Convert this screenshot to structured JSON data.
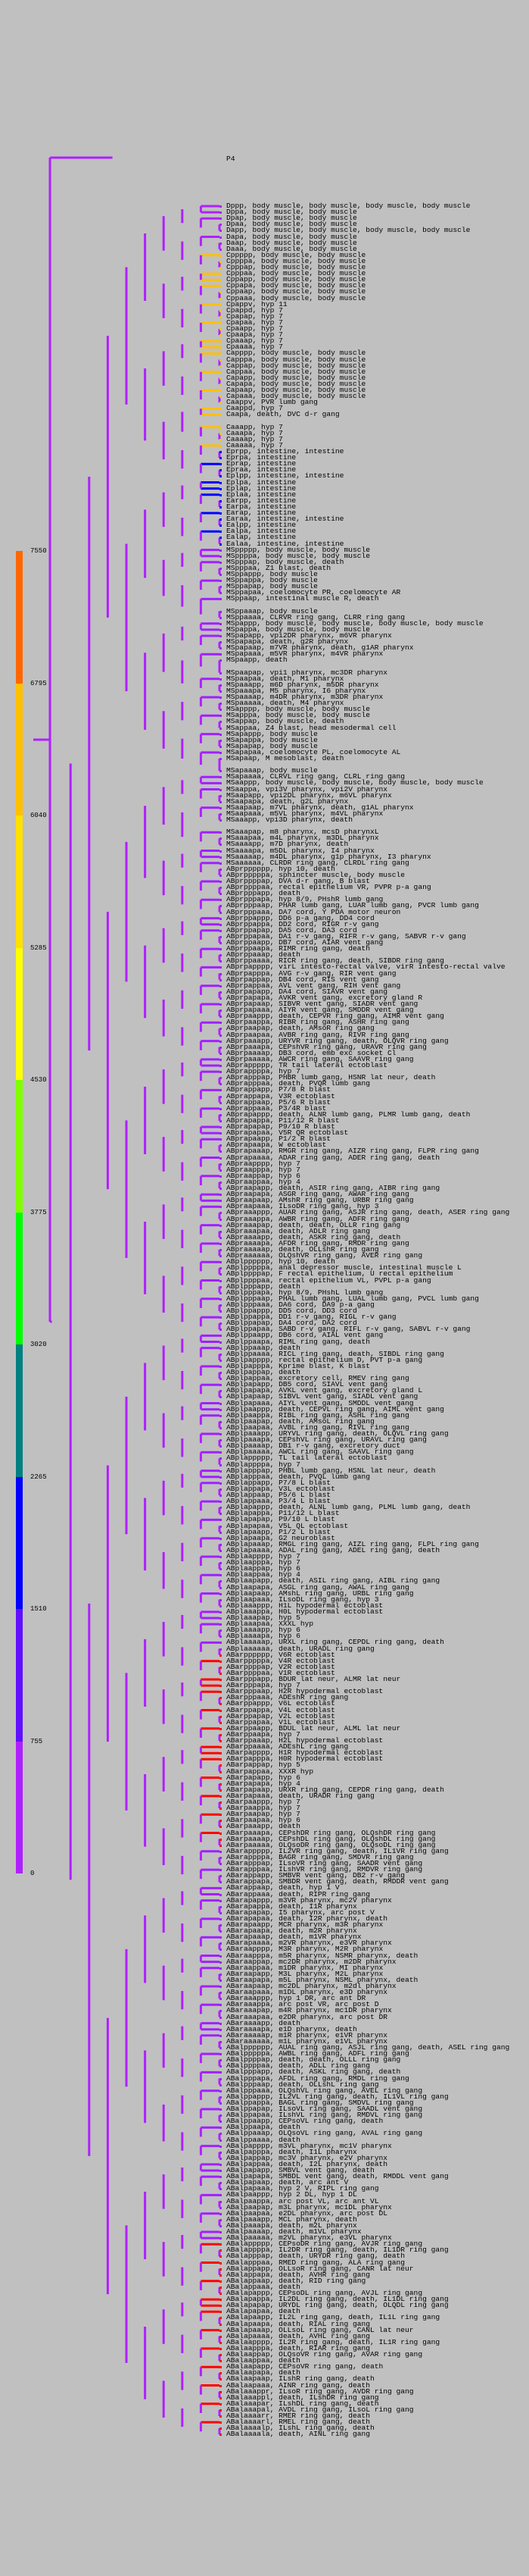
{
  "root_label": "P4",
  "legend": {
    "ticks": [
      "7550",
      "6795",
      "6040",
      "5285",
      "4530",
      "3775",
      "3020",
      "2265",
      "1510",
      "755",
      "0"
    ],
    "colors": [
      "#ff6600",
      "#ffc000",
      "#ffe000",
      "#ffff00",
      "#80ff00",
      "#00ff00",
      "#008080",
      "#0000ff",
      "#6010ff",
      "#b020ff"
    ]
  },
  "branch_color": "#b020ff",
  "group_colors": {
    "D": "#b020ff",
    "C": "#ffc000",
    "E": "#0000ff",
    "MS": "#a020ff",
    "ABpr": "#a020ff",
    "ABpl": "#a020ff",
    "ABarp": "#ff0000",
    "ABara": "#a020ff",
    "ABalp": "#a020ff",
    "ABala": "#ff0000"
  },
  "leaves": [
    "Dppp, body muscle, body muscle, body muscle, body muscle",
    "Dppa, body muscle, body muscle",
    "Dpap, body muscle, body muscle",
    "Dpaa, body muscle, body muscle",
    "Dapp, body muscle, body muscle, body muscle, body muscle",
    "Dapa, body muscle, body muscle",
    "Daap, body muscle, body muscle",
    "Daaa, body muscle, body muscle",
    "Cppppp, body muscle, body muscle",
    "Cppppa, body muscle, body muscle",
    "Cpppap, body muscle, body muscle",
    "Cpppaa, body muscle, body muscle",
    "Cppapp, body muscle, body muscle",
    "Cppapa, body muscle, body muscle",
    "Cppaap, body muscle, body muscle",
    "Cppaaa, body muscle, body muscle",
    "Cpappv, hyp 11",
    "Cpappd, hyp 7",
    "Cpapap, hyp 7",
    "Cpapaa, hyp 7",
    "Cpaapp, hyp 7",
    "Cpaapa, hyp 7",
    "Cpaaap, hyp 7",
    "Cpaaaa, hyp 7",
    "Capppp, body muscle, body muscle",
    "Capppa, body muscle, body muscle",
    "Cappap, body muscle, body muscle",
    "Cappaa, body muscle, body muscle",
    "Capapp, body muscle, body muscle",
    "Capapa, body muscle, body muscle",
    "Capaap, body muscle, body muscle",
    "Capaaa, body muscle, body muscle",
    "Caappv, PVR lumb gang",
    "Caappd, hyp 7",
    "Caapa, death, DVC d-r gang",
    "",
    "Caaapp, hyp 7",
    "Caaapa, hyp 7",
    "Caaaap, hyp 7",
    "Caaaaa, hyp 7",
    "Eprpp, intestine, intestine",
    "Eprpa, intestine",
    "Eprap, intestine",
    "Epraa, intestine",
    "Eplpp, intestine, intestine",
    "Eplpa, intestine",
    "Eplap, intestine",
    "Eplaa, intestine",
    "Earpp, intestine",
    "Earpa, intestine",
    "Earap, intestine",
    "Earaa, intestine, intestine",
    "Ealpp, intestine",
    "Ealpa, intestine",
    "Ealap, intestine",
    "Ealaa, intestine, intestine",
    "MSppppp, body muscle, body muscle",
    "MSppppa, body muscle, body muscle",
    "MSpppap, body muscle, death",
    "MSpppaa, Z1 blast, death",
    "MSppappp, body muscle",
    "MSppappa, body muscle",
    "MSppapap, body muscle",
    "MSppapaa, coelomocyte PR, coelomocyte AR",
    "MSppaap, intestinal muscle R, death",
    "",
    "MSppaaap, body muscle",
    "MSppaaaa, CLRVR ring gang, CLRR ring gang",
    "MSpappp, body muscle, body muscle, body muscle, body muscle",
    "MSpappa, body muscle, body muscle",
    "MSpapapp, vpi2DR pharynx, m6VR pharynx",
    "MSpapapa, death, g2R pharynx",
    "MSpapaap, m7VR pharynx, death, g1AR pharynx",
    "MSpapaaa, m5VR pharynx, m4VR pharynx",
    "MSpaapp, death",
    "",
    "MSpaapap, vpi1 pharynx, mc3DR pharynx",
    "MSpaapaa, death, M1 pharynx",
    "MSpaaapp, m6D pharynx, m5DR pharynx",
    "MSpaaapa, M5 pharynx, I6 pharynx",
    "MSpaaaap, m4DR pharynx, m3DR pharynx",
    "MSpaaaaa, death, M4 pharynx",
    "MSapppp, body muscle, body muscle",
    "MSapppa, body muscle, body muscle",
    "MSappap, body muscle, death",
    "MSappaa, Z4 blast, head mesodermal cell",
    "MSapappp, body muscle",
    "MSapappa, body muscle",
    "MSapapap, body muscle",
    "MSapapaa, coelomocyte PL, coelomocyte AL",
    "MSapaap, M mesoblast, death",
    "",
    "MSapaaap, body muscle",
    "MSapaaaa, CLRVL ring gang, CLRL ring gang",
    "MSaappp, body muscle, body muscle, body muscle, body muscle",
    "MSaappa, vpi3V pharynx, vpi2V pharynx",
    "MSaapapp, vpi2DL pharynx, m6VL pharynx",
    "MSaapapa, death, g2L pharynx",
    "MSaapaap, m7VL pharynx, death, g1AL pharynx",
    "MSaapaaa, m5VL pharynx, m4VL pharynx",
    "MSaaapp, vpi3D pharynx, death",
    "",
    "MSaaapap, m8 pharynx, mcsD pharynxL",
    "MSaaapaa, m4L pharynx, m3DL pharynx",
    "MSaaaapp, m7D pharynx, death",
    "MSaaaapa, m5DL pharynx, I4 pharynx",
    "MSaaaaap, m4DL pharynx, g1p pharynx, I3 pharynx",
    "MSaaaaaa, CLRDR ring gang, CLRDL ring gang",
    "ABprpppppp, hyp 10, death",
    "ABprpppppa, sphincter muscle, body muscle",
    "ABprppppap, DVA d-r gang, B blast",
    "ABprppppaa, rectal epithelium VR, PVPR p-a gang",
    "ABprpppapp, death",
    "ABprpppapa, hyp 8/9, PHshR lumb gang",
    "ABprpppaap, PHAR lumb gang, LUAR lumb gang, PVCR lumb gang",
    "ABprpppaaa, DA7 cord, Y PDA motor neuron",
    "ABprppappp, DD6 p-a gang, DD4 cord",
    "ABprppappa, DD2 cord, RIGR r-v gang",
    "ABprppapap, DA5 cord, DA3 cord",
    "ABprppapaa, DA1 r-v gang, RIFR r-v gang, SABVR r-v gang",
    "ABprppaapp, DB7 cord, AIAR vent gang",
    "ABprppaapa, RIMR ring gang, death",
    "ABprppaaap, death",
    "ABprppaaaa, RICR ring gang, death, SIBDR ring gang",
    "ABprpapppp, virL intesto-rectal valve, virR intesto-rectal valve",
    "ABprpapppa, AVG r-v gang, RIR vent gang",
    "ABprpappap, DB4 cord, RIS vent gang",
    "ABprpappaa, AVL vent gang, RIH vent gang",
    "ABprpapapp, DA4 cord, SIAVR vent gang",
    "ABprpapapa, AVKR vent gang, excretory gland R",
    "ABprpapaap, SIBVR vent gang, SIADR vent gang",
    "ABprpapaaa, AIYR vent gang, SMDDR vent gang",
    "ABprpaappp, death, CEPVR ring gang, AIMR vent gang",
    "ABprpaappa, RIBR ring gang, ASHR ring gang",
    "ABprpaapap, death, AMsoR ring gang",
    "ABprpaapaa, AVBR ring gang, RIVR ring gang",
    "ABprpaaapp, URYVR ring gang, death, OLQVR ring gang",
    "ABprpaaapa, CEPshVR ring gang, URAVR ring gang",
    "ABprpaaaap, DB3 cord, emb exc socket Cl",
    "ABprpaaaaa, AWCR ring gang, SAAVR ring gang",
    "ABprappppp, TR tail lateral ectoblast",
    "ABprappppa, hyp 7",
    "ABprapppap, PHBR lumb gang, HSNR lat neur, death",
    "ABprapppaa, death, PVQR lumb gang",
    "ABprappapp, P7/8 R blast",
    "ABprappapa, V3R ectoblast",
    "ABprappaap, P5/6 R blast",
    "ABprappaaa, P3/4R blast",
    "ABprapappp, death, ALNR lumb gang, PLMR lumb gang, death",
    "ABprapappa, P11/12 R blast",
    "ABprapapap, P9/10 R blast",
    "ABprapapaa, V5R QR ectoblast",
    "ABprapaapp, P1/2 R blast",
    "ABprapaapa, W ectoblast",
    "ABprapaaap, RMGR ring gang, AIZR ring gang, FLPR ring gang",
    "ABprapaaaa, ADAR ring gang, ADER ring gang, death",
    "ABpraapppp, hyp 7",
    "ABpraapppa, hyp 7",
    "ABpraappap, hyp 6",
    "ABpraappaa, hyp 4",
    "ABpraapapp, death, ASIR ring gang, AIBR ring gang",
    "ABpraapapa, ASGR ring gang, AWAR ring gang",
    "ABpraapaap, AMshR ring gang, URBR ring gang",
    "ABpraapaaa, ILsoDR ring gang, hyp 3",
    "ABpraaappp, AUAR ring gang, ASJR ring gang, death, ASER ring gang",
    "ABpraaappa, AWBR ring gang, ADFR ring gang",
    "ABpraaapap, death, death, OLLR ring gang",
    "ABpraaapaa, death, ADLR ring gang",
    "ABpraaaapp, death, ASKR ring gang, death",
    "ABpraaaapa, AFDR ring gang, RMDR ring gang",
    "ABpraaaaap, death, OLLshR ring gang",
    "ABpraaaaaa, OLQshVR ring gang, AVER ring gang",
    "ABplpppppp, hyp 10, death",
    "ABplpppppa, anal depressor muscle, intestinal muscle L",
    "ABplppppap, F rectal epithelium, U rectal epithelium",
    "ABplppppaa, rectal epithelium VL, PVPL p-a gang",
    "ABplpppapp, death",
    "ABplpppapa, hyp 8/9, PHshL lumb gang",
    "ABplpppaap, PHAL lumb gang, LUAL lumb gang, PVCL lumb gang",
    "ABplpppaaa, DA6 cord, DA9 p-a gang",
    "ABplppappp, DD5 cord, DD3 cord",
    "ABplppappa, DD1 r-v gang, RIGL r-v gang",
    "ABplppapap, DA4 cord, DA2 cord",
    "ABplppapaa, SABD r-v gang, RIFL r-v gang, SABVL r-v gang",
    "ABplppaapp, DB6 cord, AIAL vent gang",
    "ABplppaapa, RIML ring gang, death",
    "ABplppaaap, death",
    "ABplppaaaa, RICL ring gang, death, SIBDL ring gang",
    "ABplpapppp, rectal epithelium D, PVT p-a gang",
    "ABplpapppa, Kprime blast, K blast",
    "ABplpappap, death",
    "ABplpappaa, excretory cell, RMEV ring gang",
    "ABplpapapp, DB5 cord, SIAVL vent gang",
    "ABplpapapa, AVKL vent gang, excretory gland L",
    "ABplpapaap, SIBVL vent gang, SIADL vent gang",
    "ABplpapaaa, AIYL vent gang, SMDDL vent gang",
    "ABplpaappp, death, CEPVL ring gang, AIML vent gang",
    "ABplpaappa, RIBL ring gang, ASHL ring gang",
    "ABplpaapap, death, AMsoL ring gang",
    "ABplpaapaa, AVBL ring gang, RIVL ring gang",
    "ABplpaaapp, URYVL ring gang, death, OLQVL ring gang",
    "ABplpaaapa, CEPshVL ring gang, URAVL ring gang",
    "ABplpaaaap, DB1 r-v gang, excretory duct",
    "ABplpaaaaa, AWCL ring gang, SAAVL ring gang",
    "ABplappppp, TL tail lateral ectoblast",
    "ABplappppa, hyp 7",
    "ABplapppap, PHBL lumb gang, HSNL lat neur, death",
    "ABplapppaa, death, PVQL lumb gang",
    "ABplappapp, P7/8 L blast",
    "ABplappapa, V3L ectoblast",
    "ABplappaap, P5/6 L blast",
    "ABplappaaa, P3/4 L blast",
    "ABplapappp, death, ALNL lumb gang, PLML lumb gang, death",
    "ABplapappa, P11/12 L blast",
    "ABplapapap, P9/10 L blast",
    "ABplapapaa, V5L QL ectoblast",
    "ABplapaapp, P1/2 L blast",
    "ABplapaapa, G2 neuroblast",
    "ABplapaaap, RMGL ring gang, AIZL ring gang, FLPL ring gang",
    "ABplapaaaa, ADAL ring gang, ADEL ring gang, death",
    "ABplaapppp, hyp 7",
    "ABplaapppa, hyp 7",
    "ABplaappap, hyp 6",
    "ABplaappaa, hyp 4",
    "ABplaapapp, death, ASIL ring gang, AIBL ring gang",
    "ABplaapapa, ASGL ring gang, AWAL ring gang",
    "ABplaapaap, AMshL ring gang, URBL ring gang",
    "ABplaapaaa, ILsoDL ring gang, hyp 3",
    "ABplaaappp, H1L hypodermal ectoblast",
    "ABplaaappa, H0L hypodermal ectoblast",
    "ABplaaapap, hyp 5",
    "ABplaaapaa, XXXL hyp",
    "ABplaaaapp, hyp 6",
    "ABplaaaapa, hyp 6",
    "ABplaaaaap, URXL ring gang, CEPDL ring gang, death",
    "ABplaaaaaa, death, URADL ring gang",
    "ABarpppppp, V6R ectoblast",
    "ABarpppppa, V4R ectoblast",
    "ABarppppap, V2R ectoblast",
    "ABarppppaa, V1R ectoblast",
    "ABarpppapp, BDUR lat neur, ALMR lat neur",
    "ABarpppapa, hyp 7",
    "ABarpppaap, H2R hypodermal ectoblast",
    "ABarpppaaa, ADEshR ring gang",
    "ABarppappp, V6L ectoblast",
    "ABarppappa, V4L ectoblast",
    "ABarppapap, V2L ectoblast",
    "ABarppapaa, V1L ectoblast",
    "ABarppaapp, BDUL lat neur, ALML lat neur",
    "ABarppaapa, hyp 7",
    "ABarppaaap, H2L hypodermal ectoblast",
    "ABarppaaaa, ADEshL ring gang",
    "ABarpapppp, H1R hypodermal ectoblast",
    "ABarpapppa, H0R hypodermal ectoblast",
    "ABarpappap, hyp 5",
    "ABarpappaa, XXXR hyp",
    "ABarpapapp, hyp 6",
    "ABarpapapa, hyp 4",
    "ABarpapaap, URXR ring gang, CEPDR ring gang, death",
    "ABarpapaaa, death, URADR ring gang",
    "ABarpaappp, hyp 7",
    "ABarpaappa, hyp 7",
    "ABarpaapap, hyp 7",
    "ABarpaapaa, hyp 6",
    "ABarpaaapp, death",
    "ABarpaaapa, CEPshDR ring gang, OLQshDR ring gang",
    "ABarpaaaap, CEPshDL ring gang, OLQshDL ring gang",
    "ABarpaaaaa, OLQsoDR ring gang, OLQsoDL ring gang",
    "ABarappppp, IL2VR ring gang, death, IL1VR ring gang",
    "ABarappppa, BAGR ring gang, SMDVR ring gang",
    "ABarapppap, ILsoVR ring gang, SAADR vent gang",
    "ABarapppaa, ILshVR ring gang, RMDVR ring gang",
    "ABarappapp, SMBVR vent gang, DB2 r-v gang",
    "ABarappapa, SMBDR vent gang, death, RMDDR vent gang",
    "ABarappaap, death, hyp 1 V",
    "ABarappaaa, death, RIPR ring gang",
    "ABarapappp, m3VR pharynx, mc2V pharynx",
    "ABarapappa, death, I1R pharynx",
    "ABarapapap, I5 pharynx, arc post V",
    "ABarapapaa, death, I2R pharynx, death",
    "ABarapaapp, MCR pharynx, m3R pharynx",
    "ABarapaapa, death, m2R pharynx",
    "ABarapaaap, death, m1VR pharynx",
    "ABarapaaaa, m2VR pharynx, e3VR pharynx",
    "ABaraapppp, M3R pharynx, M2R pharynx",
    "ABaraapppa, m5R pharynx, NSMR pharynx, death",
    "ABaraappap, mc2DR pharynx, m2DR pharynx",
    "ABaraappaa, m1DR pharynx, MI pharynx",
    "ABaraapapp, M3L pharynx, M2L pharynx",
    "ABaraapapa, m5L pharynx, NSML pharynx, death",
    "ABaraapaap, mc2DL pharynx, m2dl pharynx",
    "ABaraapaaa, m1DL pharynx, e3D pharynx",
    "ABaraaappp, hyp 1 DR, arc ant DR",
    "ABaraaappa, arc post VR, arc post D",
    "ABaraaapap, m4R pharynx, mc1DR pharynx",
    "ABaraaapaa, e2DR pharynx, arc post DR",
    "ABaraaaapp, death",
    "ABaraaaapa, e1D pharynx, death",
    "ABaraaaaap, m1R pharynx, e1VR pharynx",
    "ABaraaaaaa, m1L pharynx, e1VL pharynx",
    "ABalpppppp, AUAL ring gang, ASJL ring gang, death, ASEL ring gang",
    "ABalpppppa, AWBL ring gang, ADFL ring gang",
    "ABalppppap, death, death, OLLL ring gang",
    "ABalppppaa, death, ADLL ring gang",
    "ABalpppapp, death, ASKL ring gang, death",
    "ABalpppapa, AFDL ring gang, RMDL ring gang",
    "ABalpppaap, death, OLLshL ring gang",
    "ABalpppaaa, OLQshVL ring gang, AVEL ring gang",
    "ABalppappp, IL2VL ring gang, death, IL1VL ring gang",
    "ABalppappa, BAGL ring gang, SMDVL ring gang",
    "ABalppapap, ILsoVL ring gang, SAADL vent gang",
    "ABalppapaa, ILshVL ring gang, RMDVL ring gang",
    "ABalppaapp, CEPsoVL ring gang, death",
    "ABalppaapa, death",
    "ABalppaaap, OLQsoVL ring gang, AVAL ring gang",
    "ABalppaaaa, death",
    "ABalpapppp, m3VL pharynx, mc1V pharynx",
    "ABalpapppa, death, I1L pharynx",
    "ABalpappap, mc3V pharynx, e2V pharynx",
    "ABalpappaa, death, I2L pharynx, death",
    "ABalpapapp, SMBVL vent gang, death",
    "ABalpapapa, SMBDL vent gang, death, RMDDL vent gang",
    "ABalpapaap, death, arc ant V",
    "ABalpapaaa, hyp 2 V, RIPL ring gang",
    "ABalpaappp, hyp 2 DL, hyp 1 DL",
    "ABalpaappa, arc post VL, arc ant VL",
    "ABalpaapap, m3L pharynx, mc1DL pharynx",
    "ABalpaapaa, e2DL pharynx, arc post DL",
    "ABalpaaapp, MCL pharynx, death",
    "ABalpaaapa, death, m2L pharynx",
    "ABalpaaaap, death, m1VL pharynx",
    "ABalpaaaaa, m2VL pharynx, e3VL pharynx",
    "ABalappppp, CEPsoDR ring gang, AVJR ring gang",
    "ABalappppa, IL2DR ring gang, death, IL1DR ring gang",
    "ABalapppap, death, URYDR ring gang, death",
    "ABalapppaa, RMED ring gang, ALA ring gang",
    "ABalappapp, OLLsoR ring gang, CANR lat neur",
    "ABalappapa, death, AVHR ring gang",
    "ABalappaap, death, RID ring gang",
    "ABalappaaa, death",
    "ABalapappp, CEPsoDL ring gang, AVJL ring gang",
    "ABalapappa, IL2DL ring gang, death, IL1DL ring gang",
    "ABalapapap, URYDL ring gang, death, OLQDL ring gang",
    "ABalapapaa, death",
    "ABalapaapp, IL2L ring gang, death, IL1L ring gang",
    "ABalapaapa, death, RIAL ring gang",
    "ABalapaaap, OLLsoL ring gang, CANL lat neur",
    "ABalapaaaa, death, AVHL ring gang",
    "ABalaapppp, IL2R ring gang, death, IL1R ring gang",
    "ABalaapppa, death, RIAR ring gang",
    "ABalaappap, OLQsoVR ring gang, AVAR ring gang",
    "ABalaappaa, death",
    "ABalaapapp, CEPsoVR ring gang, death",
    "ABalaapapa, death",
    "ABalaapaap, ILshR ring gang, death",
    "ABalaapaaa, AINR ring gang, death",
    "ABalaaappr, ILsoR ring gang, AVDR ring gang",
    "ABalaaappl, death, ILshDR ring gang",
    "ABalaaapar, ILshDL ring gang, death",
    "ABalaaapal, AVDL ring gang, ILsoL ring gang",
    "ABalaaaarr, RMER ring gang, death",
    "ABalaaaarl, RMEL ring gang, death",
    "ABalaaaalp, ILshL ring gang, death",
    "ABalaaaala, death, AINL ring gang"
  ]
}
